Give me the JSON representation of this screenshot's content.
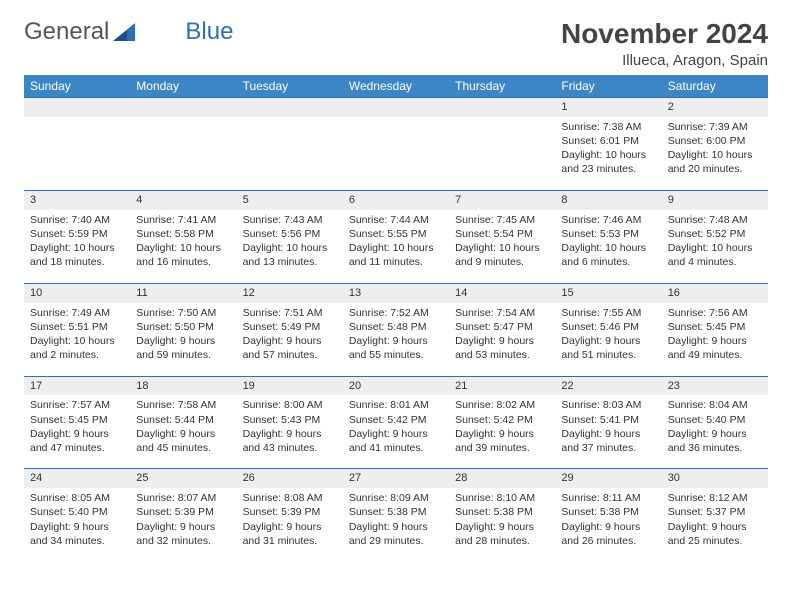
{
  "brand": {
    "name1": "General",
    "name2": "Blue"
  },
  "title": "November 2024",
  "location": "Illueca, Aragon, Spain",
  "headerColor": "#3d86c6",
  "ruleColor": "#2d6fb5",
  "dayNames": [
    "Sunday",
    "Monday",
    "Tuesday",
    "Wednesday",
    "Thursday",
    "Friday",
    "Saturday"
  ],
  "weeks": [
    {
      "nums": [
        "",
        "",
        "",
        "",
        "",
        "1",
        "2"
      ],
      "cells": [
        "",
        "",
        "",
        "",
        "",
        "Sunrise: 7:38 AM\nSunset: 6:01 PM\nDaylight: 10 hours and 23 minutes.",
        "Sunrise: 7:39 AM\nSunset: 6:00 PM\nDaylight: 10 hours and 20 minutes."
      ]
    },
    {
      "nums": [
        "3",
        "4",
        "5",
        "6",
        "7",
        "8",
        "9"
      ],
      "cells": [
        "Sunrise: 7:40 AM\nSunset: 5:59 PM\nDaylight: 10 hours and 18 minutes.",
        "Sunrise: 7:41 AM\nSunset: 5:58 PM\nDaylight: 10 hours and 16 minutes.",
        "Sunrise: 7:43 AM\nSunset: 5:56 PM\nDaylight: 10 hours and 13 minutes.",
        "Sunrise: 7:44 AM\nSunset: 5:55 PM\nDaylight: 10 hours and 11 minutes.",
        "Sunrise: 7:45 AM\nSunset: 5:54 PM\nDaylight: 10 hours and 9 minutes.",
        "Sunrise: 7:46 AM\nSunset: 5:53 PM\nDaylight: 10 hours and 6 minutes.",
        "Sunrise: 7:48 AM\nSunset: 5:52 PM\nDaylight: 10 hours and 4 minutes."
      ]
    },
    {
      "nums": [
        "10",
        "11",
        "12",
        "13",
        "14",
        "15",
        "16"
      ],
      "cells": [
        "Sunrise: 7:49 AM\nSunset: 5:51 PM\nDaylight: 10 hours and 2 minutes.",
        "Sunrise: 7:50 AM\nSunset: 5:50 PM\nDaylight: 9 hours and 59 minutes.",
        "Sunrise: 7:51 AM\nSunset: 5:49 PM\nDaylight: 9 hours and 57 minutes.",
        "Sunrise: 7:52 AM\nSunset: 5:48 PM\nDaylight: 9 hours and 55 minutes.",
        "Sunrise: 7:54 AM\nSunset: 5:47 PM\nDaylight: 9 hours and 53 minutes.",
        "Sunrise: 7:55 AM\nSunset: 5:46 PM\nDaylight: 9 hours and 51 minutes.",
        "Sunrise: 7:56 AM\nSunset: 5:45 PM\nDaylight: 9 hours and 49 minutes."
      ]
    },
    {
      "nums": [
        "17",
        "18",
        "19",
        "20",
        "21",
        "22",
        "23"
      ],
      "cells": [
        "Sunrise: 7:57 AM\nSunset: 5:45 PM\nDaylight: 9 hours and 47 minutes.",
        "Sunrise: 7:58 AM\nSunset: 5:44 PM\nDaylight: 9 hours and 45 minutes.",
        "Sunrise: 8:00 AM\nSunset: 5:43 PM\nDaylight: 9 hours and 43 minutes.",
        "Sunrise: 8:01 AM\nSunset: 5:42 PM\nDaylight: 9 hours and 41 minutes.",
        "Sunrise: 8:02 AM\nSunset: 5:42 PM\nDaylight: 9 hours and 39 minutes.",
        "Sunrise: 8:03 AM\nSunset: 5:41 PM\nDaylight: 9 hours and 37 minutes.",
        "Sunrise: 8:04 AM\nSunset: 5:40 PM\nDaylight: 9 hours and 36 minutes."
      ]
    },
    {
      "nums": [
        "24",
        "25",
        "26",
        "27",
        "28",
        "29",
        "30"
      ],
      "cells": [
        "Sunrise: 8:05 AM\nSunset: 5:40 PM\nDaylight: 9 hours and 34 minutes.",
        "Sunrise: 8:07 AM\nSunset: 5:39 PM\nDaylight: 9 hours and 32 minutes.",
        "Sunrise: 8:08 AM\nSunset: 5:39 PM\nDaylight: 9 hours and 31 minutes.",
        "Sunrise: 8:09 AM\nSunset: 5:38 PM\nDaylight: 9 hours and 29 minutes.",
        "Sunrise: 8:10 AM\nSunset: 5:38 PM\nDaylight: 9 hours and 28 minutes.",
        "Sunrise: 8:11 AM\nSunset: 5:38 PM\nDaylight: 9 hours and 26 minutes.",
        "Sunrise: 8:12 AM\nSunset: 5:37 PM\nDaylight: 9 hours and 25 minutes."
      ]
    }
  ]
}
